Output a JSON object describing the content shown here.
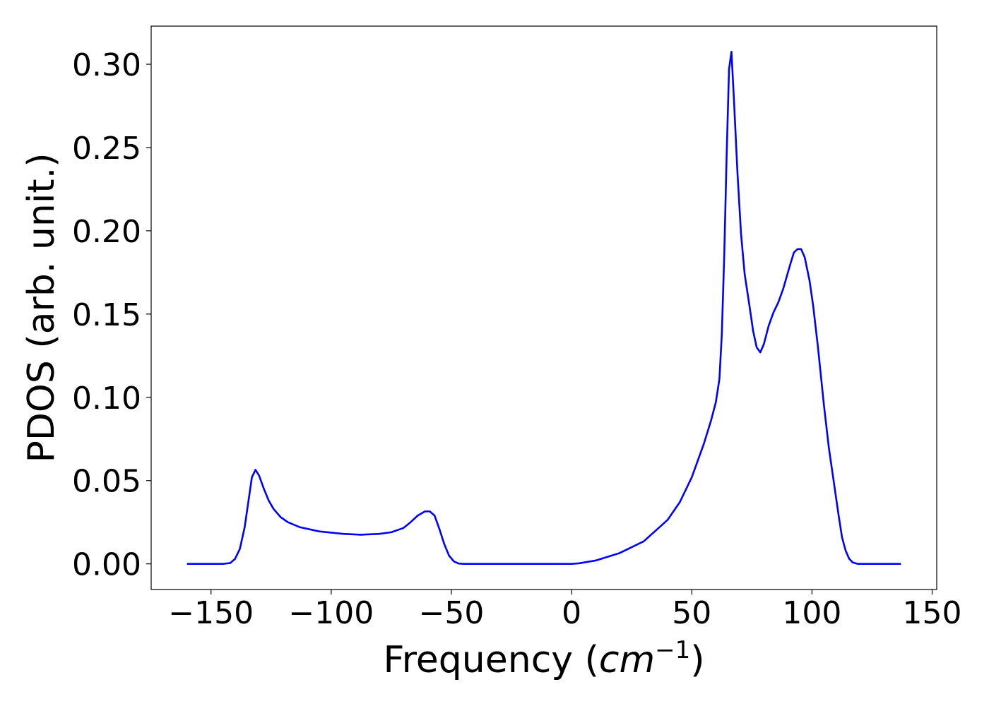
{
  "chart_data": {
    "type": "line",
    "xlabel": [
      "Frequency (",
      "cm",
      "−1",
      ")"
    ],
    "ylabel": "PDOS (arb. unit.)",
    "series": [
      {
        "color": "#0000ff",
        "x": [
          -160,
          -145,
          -142,
          -140,
          -138,
          -136,
          -134.5,
          -133,
          -131.5,
          -130,
          -128,
          -126,
          -124,
          -121,
          -118,
          -113,
          -105,
          -95,
          -88,
          -80,
          -75,
          -70,
          -67,
          -64,
          -61,
          -59,
          -57,
          -55,
          -53,
          -51,
          -49,
          -47,
          -45,
          0,
          3,
          10,
          20,
          30,
          40,
          45,
          50,
          55,
          58,
          60,
          61.5,
          62.5,
          63.5,
          64.5,
          65.5,
          66.5,
          67.5,
          69,
          70.5,
          72,
          74,
          75.5,
          77,
          78.5,
          80,
          82,
          84,
          86,
          88,
          91,
          92.5,
          94,
          95.5,
          97,
          99,
          100.5,
          102.5,
          105,
          107,
          109,
          111,
          112.5,
          114,
          115.5,
          117,
          119,
          137
        ],
        "values": [
          0,
          0,
          0.0005,
          0.003,
          0.009,
          0.022,
          0.037,
          0.052,
          0.0565,
          0.053,
          0.045,
          0.038,
          0.033,
          0.028,
          0.025,
          0.022,
          0.0195,
          0.018,
          0.0175,
          0.018,
          0.019,
          0.0215,
          0.025,
          0.029,
          0.0315,
          0.0315,
          0.029,
          0.021,
          0.012,
          0.005,
          0.0015,
          0.0002,
          0,
          0,
          0.0003,
          0.002,
          0.0065,
          0.0135,
          0.0265,
          0.037,
          0.052,
          0.072,
          0.086,
          0.097,
          0.111,
          0.138,
          0.185,
          0.245,
          0.297,
          0.3075,
          0.28,
          0.235,
          0.198,
          0.174,
          0.155,
          0.14,
          0.13,
          0.127,
          0.132,
          0.143,
          0.151,
          0.157,
          0.165,
          0.18,
          0.187,
          0.189,
          0.189,
          0.184,
          0.17,
          0.155,
          0.13,
          0.095,
          0.07,
          0.05,
          0.03,
          0.016,
          0.008,
          0.003,
          0.0008,
          0,
          0
        ]
      }
    ],
    "xlim": [
      -174.9,
      151.9
    ],
    "ylim": [
      -0.0154,
      0.3229
    ],
    "xticks": [
      {
        "value": -150,
        "label": "−150"
      },
      {
        "value": -100,
        "label": "−100"
      },
      {
        "value": -50,
        "label": "−50"
      },
      0,
      50,
      100,
      150
    ],
    "yticks": [
      {
        "value": 0,
        "label": "0.00"
      },
      {
        "value": 0.05,
        "label": "0.05"
      },
      {
        "value": 0.1,
        "label": "0.10"
      },
      {
        "value": 0.15,
        "label": "0.15"
      },
      {
        "value": 0.2,
        "label": "0.20"
      },
      {
        "value": 0.25,
        "label": "0.25"
      },
      {
        "value": 0.3,
        "label": "0.30"
      }
    ]
  }
}
